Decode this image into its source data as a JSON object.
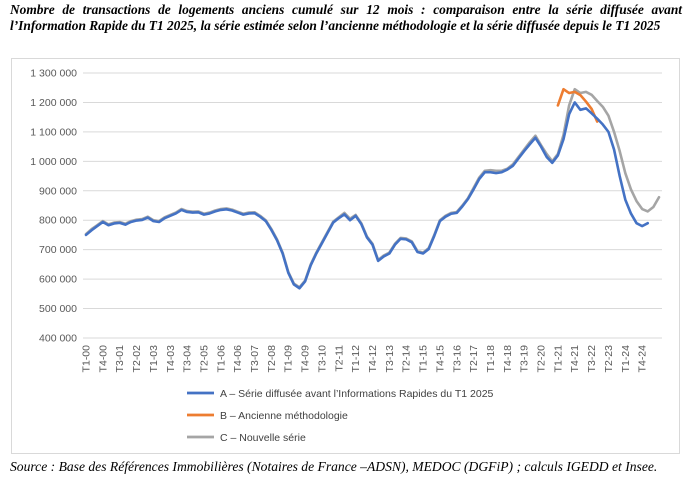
{
  "title": "Nombre de transactions de logements anciens cumulé sur 12 mois : comparaison entre la série diffusée avant l’Information Rapide du T1 2025, la série estimée selon l’ancienne méthodologie et la série diffusée depuis le T1 2025",
  "source": "Source : Base des Références Immobilières (Notaires de France –ADSN), MEDOC (DGFiP) ; calculs IGEDD et Insee.",
  "chart_data": {
    "type": "line",
    "title": "",
    "xlabel": "",
    "ylabel": "",
    "ylim": [
      400000,
      1300000
    ],
    "yticks": [
      400000,
      500000,
      600000,
      700000,
      800000,
      900000,
      1000000,
      1100000,
      1200000,
      1300000
    ],
    "ytick_labels": [
      "400 000",
      "500 000",
      "600 000",
      "700 000",
      "800 000",
      "900 000",
      "1 000 000",
      "1 100 000",
      "1 200 000",
      "1 300 000"
    ],
    "grid": true,
    "legend_position": "bottom",
    "x_start": "T1-00",
    "x_tick_labels": [
      "T1-00",
      "T4-00",
      "T3-01",
      "T2-02",
      "T1-03",
      "T4-03",
      "T3-04",
      "T2-05",
      "T1-06",
      "T4-06",
      "T3-07",
      "T2-08",
      "T1-09",
      "T4-09",
      "T3-10",
      "T2-11",
      "T1-12",
      "T4-12",
      "T3-13",
      "T2-14",
      "T1-15",
      "T4-15",
      "T3-16",
      "T2-17",
      "T1-18",
      "T4-18",
      "T3-19",
      "T2-20",
      "T1-21",
      "T4-21",
      "T3-22",
      "T2-23",
      "T1-24",
      "T4-24"
    ],
    "series": [
      {
        "name": "C – Nouvelle série",
        "color": "#a5a5a5",
        "start": "T1-00",
        "values": [
          753000,
          770000,
          783000,
          797000,
          786000,
          792000,
          794000,
          788000,
          797000,
          802000,
          804000,
          812000,
          800000,
          797000,
          810000,
          818000,
          826000,
          838000,
          831000,
          829000,
          830000,
          822000,
          826000,
          833000,
          838000,
          840000,
          836000,
          829000,
          822000,
          826000,
          827000,
          815000,
          800000,
          770000,
          735000,
          690000,
          625000,
          585000,
          572000,
          595000,
          650000,
          690000,
          725000,
          760000,
          795000,
          810000,
          825000,
          805000,
          818000,
          790000,
          745000,
          720000,
          665000,
          680000,
          690000,
          720000,
          740000,
          738000,
          728000,
          695000,
          690000,
          705000,
          750000,
          800000,
          815000,
          825000,
          828000,
          850000,
          875000,
          910000,
          945000,
          968000,
          970000,
          968000,
          968000,
          975000,
          990000,
          1015000,
          1040000,
          1065000,
          1087000,
          1055000,
          1025000,
          1000000,
          1025000,
          1090000,
          1190000,
          1245000,
          1232000,
          1236000,
          1226000,
          1205000,
          1185000,
          1155000,
          1100000,
          1035000,
          960000,
          905000,
          865000,
          838000,
          830000,
          845000,
          878000
        ]
      },
      {
        "name": "B – Ancienne méthodologie",
        "color": "#ed7d31",
        "start": "T1-21",
        "values": [
          1190000,
          1245000,
          1232000,
          1236000,
          1225000,
          1203000,
          1178000,
          1135000
        ]
      },
      {
        "name": "A – Série diffusée avant l’Informations Rapides du T1 2025",
        "color": "#4472c4",
        "start": "T1-00",
        "values": [
          750000,
          766000,
          780000,
          794000,
          783000,
          789000,
          791000,
          785000,
          794000,
          799000,
          801000,
          809000,
          797000,
          794000,
          807000,
          815000,
          823000,
          835000,
          828000,
          826000,
          827000,
          819000,
          823000,
          830000,
          835000,
          837000,
          833000,
          826000,
          819000,
          823000,
          824000,
          812000,
          797000,
          767000,
          732000,
          687000,
          622000,
          582000,
          569000,
          592000,
          647000,
          687000,
          722000,
          757000,
          792000,
          807000,
          820000,
          800000,
          815000,
          787000,
          742000,
          717000,
          662000,
          677000,
          687000,
          717000,
          737000,
          735000,
          725000,
          692000,
          687000,
          702000,
          747000,
          797000,
          812000,
          822000,
          825000,
          847000,
          872000,
          905000,
          940000,
          963000,
          963000,
          960000,
          963000,
          972000,
          985000,
          1010000,
          1035000,
          1058000,
          1080000,
          1050000,
          1015000,
          995000,
          1020000,
          1075000,
          1160000,
          1200000,
          1175000,
          1180000,
          1163000,
          1145000,
          1125000,
          1100000,
          1040000,
          950000,
          870000,
          823000,
          790000,
          780000,
          790000
        ]
      }
    ],
    "legend": [
      {
        "label": "A – Série diffusée avant l’Informations Rapides du T1 2025",
        "color": "#4472c4"
      },
      {
        "label": "B – Ancienne méthodologie",
        "color": "#ed7d31"
      },
      {
        "label": "C – Nouvelle série",
        "color": "#a5a5a5"
      }
    ]
  }
}
